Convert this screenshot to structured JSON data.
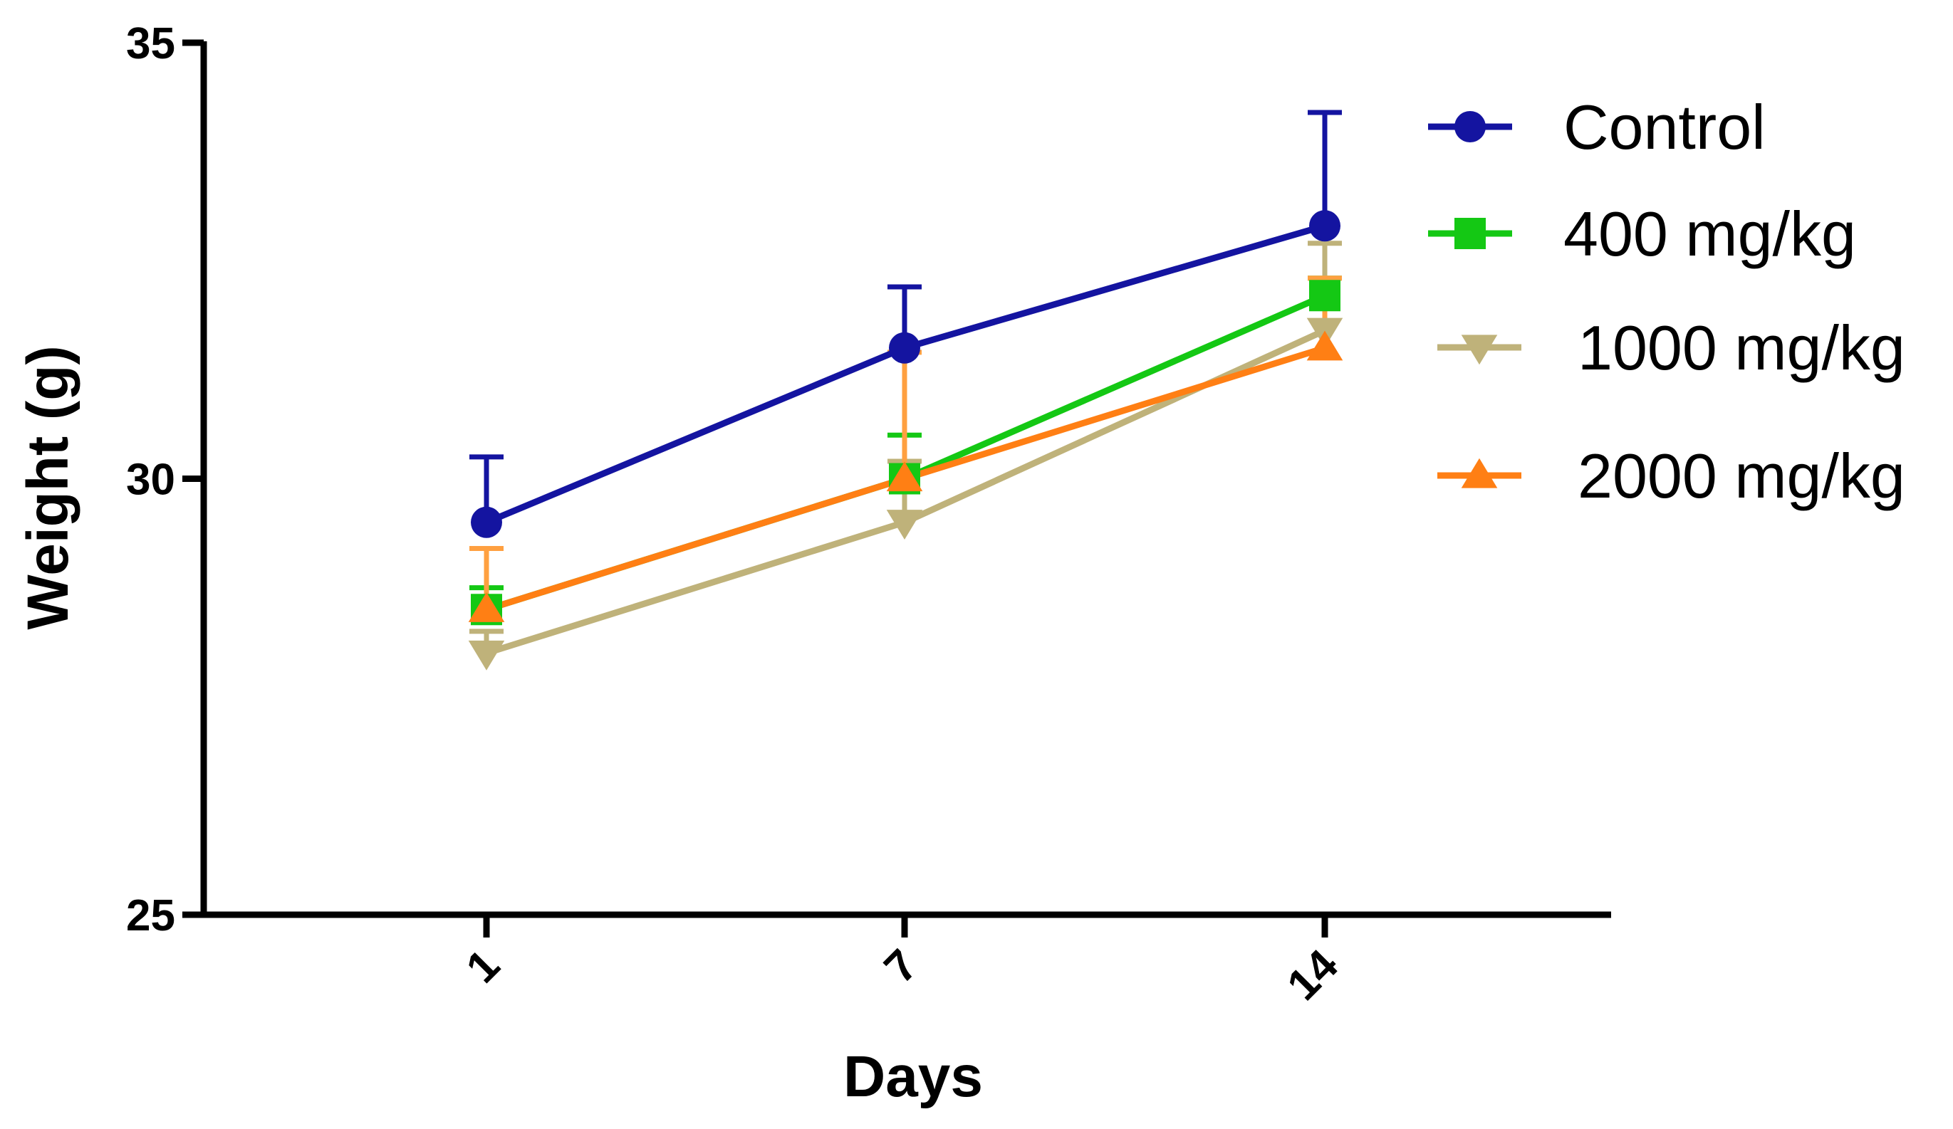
{
  "chart_data": {
    "type": "line",
    "title": "",
    "xlabel": "Days",
    "ylabel": "Weight (g)",
    "categories": [
      "1",
      "7",
      "14"
    ],
    "ylim": [
      25,
      35
    ],
    "yticks": [
      "25",
      "30",
      "35"
    ],
    "error_bars": "one-sided (upper)",
    "series": [
      {
        "name": "Control",
        "color": "#1414a0",
        "marker": "circle",
        "values": [
          29.5,
          31.5,
          32.9
        ],
        "errors": [
          0.75,
          0.7,
          1.3
        ]
      },
      {
        "name": "400 mg/kg",
        "color": "#14c814",
        "marker": "square",
        "values": [
          28.5,
          30.0,
          32.1
        ],
        "errors": [
          0.25,
          0.5,
          0.2
        ]
      },
      {
        "name": "1000 mg/kg",
        "color": "#bfb27a",
        "marker": "triangle-down",
        "values": [
          28.0,
          29.5,
          31.7
        ],
        "errors": [
          0.25,
          0.7,
          1.0
        ]
      },
      {
        "name": "2000 mg/kg",
        "color": "#ff7f14",
        "marker": "triangle-up",
        "values": [
          28.5,
          30.0,
          31.5
        ],
        "errors": [
          0.7,
          1.45,
          0.8
        ]
      }
    ],
    "legend_position": "top-right"
  }
}
